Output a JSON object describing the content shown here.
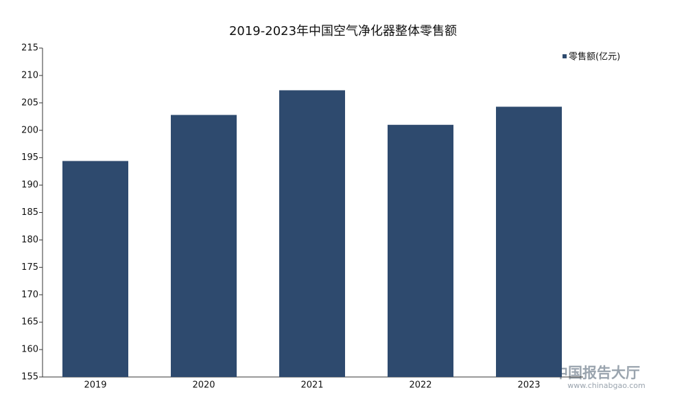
{
  "chart_data": {
    "type": "bar",
    "title": "2019-2023年中国空气净化器整体零售额",
    "categories": [
      "2019",
      "2020",
      "2021",
      "2022",
      "2023"
    ],
    "series": [
      {
        "name": "零售额(亿元)",
        "color": "#2e4a6e",
        "values": [
          194.4,
          202.8,
          207.3,
          201.0,
          204.3
        ]
      }
    ],
    "ylim": [
      155,
      215
    ],
    "yticks": [
      155,
      160,
      165,
      170,
      175,
      180,
      185,
      190,
      195,
      200,
      205,
      210,
      215
    ],
    "legend": "top-right"
  },
  "watermark": {
    "name": "中国报告大厅",
    "url": "www.chinabgao.com"
  }
}
